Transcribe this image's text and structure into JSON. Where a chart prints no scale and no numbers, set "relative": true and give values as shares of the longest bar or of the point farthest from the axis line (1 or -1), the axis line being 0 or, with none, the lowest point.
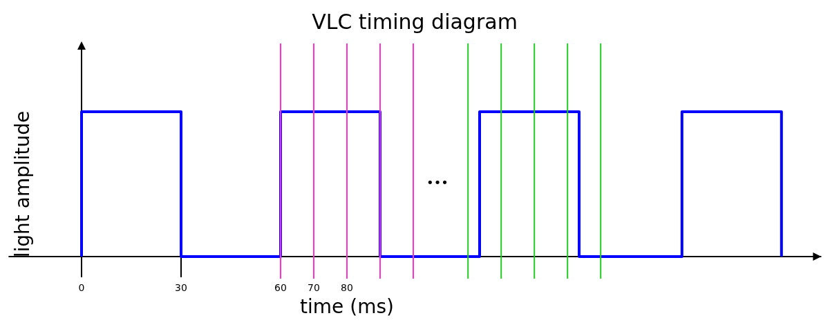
{
  "chart_data": {
    "type": "step",
    "title": "VLC timing diagram",
    "xlabel": "time (ms)",
    "ylabel": "light amplitude",
    "relative": true,
    "xlim": [
      -22,
      223
    ],
    "xticks": [
      0,
      30,
      60,
      70,
      80
    ],
    "series": [
      {
        "color": "#0000ff",
        "x": [
          0,
          0,
          30,
          60,
          90,
          120,
          150,
          181,
          211,
          211
        ],
        "values": [
          0,
          1,
          0,
          1,
          0,
          1,
          0,
          1,
          1,
          0
        ]
      }
    ],
    "ref_lines": [
      {
        "axis": "x",
        "value": 60,
        "color": "#ff33cc"
      },
      {
        "axis": "x",
        "value": 70,
        "color": "#ff33cc"
      },
      {
        "axis": "x",
        "value": 80,
        "color": "#ff33cc"
      },
      {
        "axis": "x",
        "value": 90,
        "color": "#ff33cc"
      },
      {
        "axis": "x",
        "value": 100,
        "color": "#ff33cc"
      },
      {
        "axis": "x",
        "value": 116.5,
        "color": "#22cc22"
      },
      {
        "axis": "x",
        "value": 126.5,
        "color": "#22cc22"
      },
      {
        "axis": "x",
        "value": 136.5,
        "color": "#22cc22"
      },
      {
        "axis": "x",
        "value": 146.5,
        "color": "#22cc22"
      },
      {
        "axis": "x",
        "value": 156.5,
        "color": "#22cc22"
      }
    ],
    "annotations": [
      "•••"
    ]
  }
}
